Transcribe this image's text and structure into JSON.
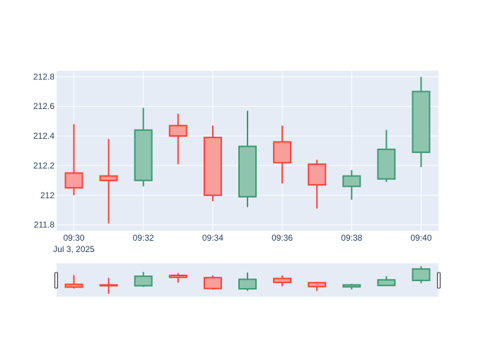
{
  "chart_data": {
    "type": "candlestick",
    "x": [
      "09:30",
      "09:31",
      "09:32",
      "09:33",
      "09:34",
      "09:35",
      "09:36",
      "09:37",
      "09:38",
      "09:39",
      "09:40"
    ],
    "date_label": "Jul 3, 2025",
    "x_tick_labels": [
      "09:30",
      "09:32",
      "09:34",
      "09:36",
      "09:38",
      "09:40"
    ],
    "series": [
      {
        "open": [
          212.15,
          212.13,
          212.1,
          212.47,
          212.39,
          211.99,
          212.36,
          212.21,
          212.06,
          212.11,
          212.29
        ],
        "high": [
          212.48,
          212.38,
          212.59,
          212.55,
          212.47,
          212.57,
          212.47,
          212.24,
          212.17,
          212.44,
          212.8
        ],
        "low": [
          212.0,
          211.81,
          212.06,
          212.21,
          211.96,
          211.92,
          212.08,
          211.91,
          211.97,
          212.09,
          212.19
        ],
        "close": [
          212.05,
          212.1,
          212.44,
          212.4,
          212.0,
          212.33,
          212.22,
          212.07,
          212.13,
          212.31,
          212.7
        ]
      }
    ],
    "y_tick_labels": [
      "211.8",
      "212",
      "212.2",
      "212.4",
      "212.6",
      "212.8"
    ],
    "y_ticks": [
      211.8,
      212.0,
      212.2,
      212.4,
      212.6,
      212.8
    ],
    "ylim": [
      211.76,
      212.84
    ],
    "grid": true,
    "rangeslider": true,
    "colors": {
      "increasing_line": "#3d9970",
      "increasing_fill": "#8ec5ae",
      "decreasing_line": "#ff4136",
      "decreasing_fill": "#f99f9b",
      "plot_bg": "#e5ecf6",
      "grid": "#ffffff",
      "text": "#2a3f5f"
    }
  }
}
